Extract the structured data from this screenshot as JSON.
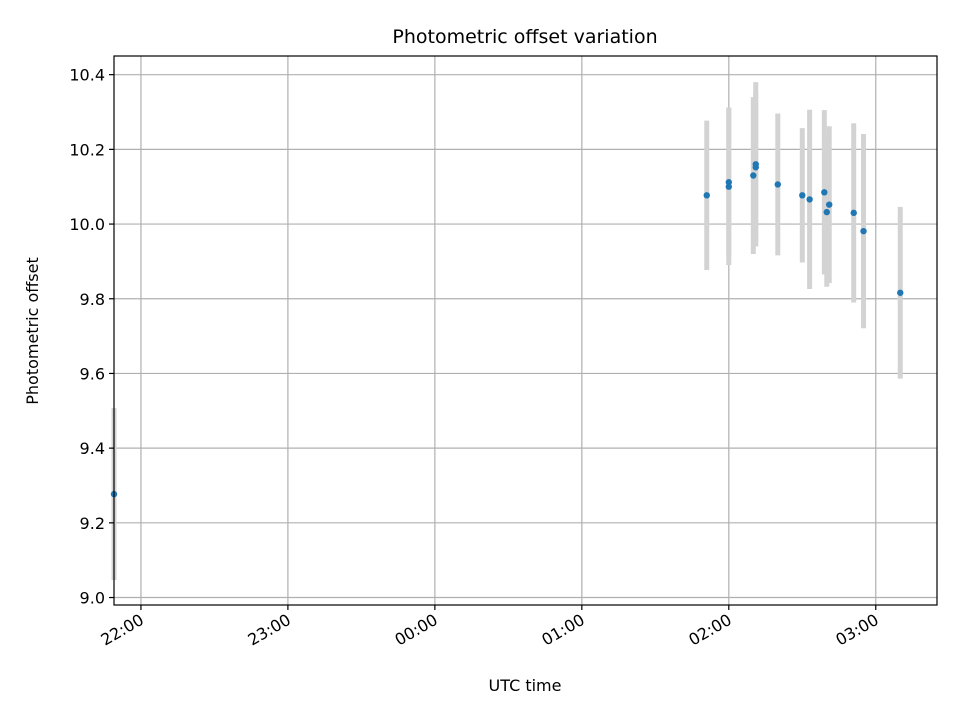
{
  "chart_data": {
    "type": "scatter",
    "title": "Photometric offset variation",
    "xlabel": "UTC time",
    "ylabel": "Photometric offset",
    "x_is_time": true,
    "xlim": [
      "21:49",
      "03:25"
    ],
    "ylim": [
      8.98,
      10.45
    ],
    "x_ticks": [
      "22:00",
      "23:00",
      "00:00",
      "01:00",
      "02:00",
      "03:00"
    ],
    "y_ticks": [
      9.0,
      9.2,
      9.4,
      9.6,
      9.8,
      10.0,
      10.2,
      10.4
    ],
    "y_tick_labels": [
      "9.0",
      "9.2",
      "9.4",
      "9.6",
      "9.8",
      "10.0",
      "10.2",
      "10.4"
    ],
    "grid": true,
    "colors": {
      "points": "#1f77b4",
      "errorbars": "#d3d3d3",
      "grid": "#b0b0b0"
    },
    "series": [
      {
        "points": [
          {
            "t": "21:49",
            "y": 9.277,
            "err": 0.23
          },
          {
            "t": "01:51",
            "y": 10.077,
            "err": 0.2
          },
          {
            "t": "02:00",
            "y": 10.1,
            "err": 0.21
          },
          {
            "t": "02:00",
            "y": 10.112,
            "err": 0.2
          },
          {
            "t": "02:10",
            "y": 10.13,
            "err": 0.21
          },
          {
            "t": "02:11",
            "y": 10.152,
            "err": 0.2
          },
          {
            "t": "02:11",
            "y": 10.16,
            "err": 0.22
          },
          {
            "t": "02:20",
            "y": 10.106,
            "err": 0.19
          },
          {
            "t": "02:30",
            "y": 10.077,
            "err": 0.18
          },
          {
            "t": "02:33",
            "y": 10.066,
            "err": 0.24
          },
          {
            "t": "02:39",
            "y": 10.085,
            "err": 0.22
          },
          {
            "t": "02:40",
            "y": 10.032,
            "err": 0.2
          },
          {
            "t": "02:41",
            "y": 10.052,
            "err": 0.21
          },
          {
            "t": "02:51",
            "y": 10.03,
            "err": 0.24
          },
          {
            "t": "02:55",
            "y": 9.981,
            "err": 0.26
          },
          {
            "t": "03:10",
            "y": 9.816,
            "err": 0.23
          }
        ]
      }
    ]
  }
}
